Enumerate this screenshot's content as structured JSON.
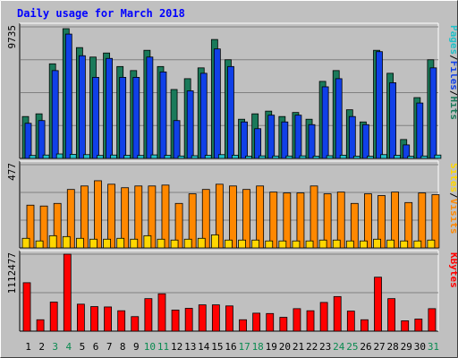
{
  "chart_data": [
    {
      "type": "bar",
      "panel": "pages-files-hits",
      "title": "Daily usage for March 2018",
      "ylabel_parts": [
        "Pages",
        "/",
        "Files",
        "/",
        "Hits"
      ],
      "y_tick_label": "9735",
      "ylim": [
        0,
        9735
      ],
      "categories": [
        "1",
        "2",
        "3",
        "4",
        "5",
        "6",
        "7",
        "8",
        "9",
        "10",
        "11",
        "12",
        "13",
        "14",
        "15",
        "16",
        "17",
        "18",
        "19",
        "20",
        "21",
        "22",
        "23",
        "24",
        "25",
        "26",
        "27",
        "28",
        "29",
        "30",
        "31"
      ],
      "series": [
        {
          "name": "Hits",
          "color": "#1a7a5a",
          "values": [
            3100,
            3300,
            7000,
            9600,
            8200,
            7500,
            7800,
            6800,
            6500,
            8000,
            6800,
            5100,
            5900,
            6700,
            8800,
            7300,
            2900,
            3300,
            3500,
            3100,
            3400,
            2900,
            5700,
            6500,
            3600,
            2700,
            8000,
            6300,
            1400,
            4500,
            7300
          ]
        },
        {
          "name": "Files",
          "color": "#1040e8",
          "values": [
            2600,
            2800,
            6500,
            9200,
            7600,
            6000,
            7400,
            6000,
            6000,
            7500,
            6400,
            2800,
            5000,
            6300,
            8100,
            6800,
            2700,
            2200,
            3200,
            2700,
            3200,
            2500,
            5300,
            5900,
            3100,
            2500,
            7900,
            5600,
            1000,
            4100,
            6700
          ]
        },
        {
          "name": "Pages",
          "color": "#20c0c8",
          "values": [
            220,
            250,
            330,
            300,
            280,
            220,
            250,
            230,
            220,
            260,
            230,
            180,
            200,
            230,
            280,
            240,
            170,
            190,
            180,
            180,
            190,
            170,
            200,
            240,
            170,
            160,
            280,
            230,
            160,
            180,
            250
          ]
        }
      ]
    },
    {
      "type": "bar",
      "panel": "sites-visits",
      "ylabel_parts": [
        "Sites",
        "/",
        "Visits"
      ],
      "y_tick_label": "477",
      "ylim": [
        0,
        477
      ],
      "series": [
        {
          "name": "Visits",
          "color": "#ff8800",
          "values": [
            245,
            240,
            255,
            335,
            355,
            385,
            365,
            345,
            355,
            355,
            360,
            255,
            310,
            335,
            365,
            355,
            335,
            355,
            320,
            315,
            315,
            355,
            310,
            320,
            255,
            310,
            300,
            320,
            260,
            315,
            305
          ]
        },
        {
          "name": "Sites",
          "color": "#ffd700",
          "values": [
            55,
            40,
            70,
            65,
            55,
            50,
            50,
            55,
            50,
            70,
            50,
            45,
            50,
            55,
            75,
            45,
            45,
            45,
            40,
            40,
            40,
            40,
            45,
            45,
            40,
            40,
            50,
            45,
            40,
            40,
            45
          ]
        }
      ]
    },
    {
      "type": "bar",
      "panel": "kbytes",
      "ylabel": "KBytes",
      "y_tick_label": "1112477",
      "ylim": [
        0,
        1112477
      ],
      "series": [
        {
          "name": "KBytes",
          "color": "#ff0000",
          "values": [
            700000,
            165000,
            420000,
            1112477,
            390000,
            355000,
            350000,
            295000,
            210000,
            470000,
            540000,
            305000,
            330000,
            380000,
            380000,
            365000,
            165000,
            260000,
            255000,
            200000,
            325000,
            295000,
            415000,
            500000,
            290000,
            165000,
            780000,
            470000,
            150000,
            175000,
            325000
          ]
        }
      ]
    }
  ],
  "x_labels": [
    "1",
    "2",
    "3",
    "4",
    "5",
    "6",
    "7",
    "8",
    "9",
    "10",
    "11",
    "12",
    "13",
    "14",
    "15",
    "16",
    "17",
    "18",
    "19",
    "20",
    "21",
    "22",
    "23",
    "24",
    "25",
    "26",
    "27",
    "28",
    "29",
    "30",
    "31"
  ],
  "weekend_days": [
    3,
    4,
    10,
    11,
    17,
    18,
    24,
    25,
    31
  ],
  "colors": {
    "background": "#c0c0c0",
    "plot_bg": "#c0c0c0",
    "gridline": "#808080",
    "title": "#0000ff",
    "day_label": "#000000",
    "weekend_label": "#0a8a50",
    "sep": "#000000",
    "border": "#606060"
  }
}
